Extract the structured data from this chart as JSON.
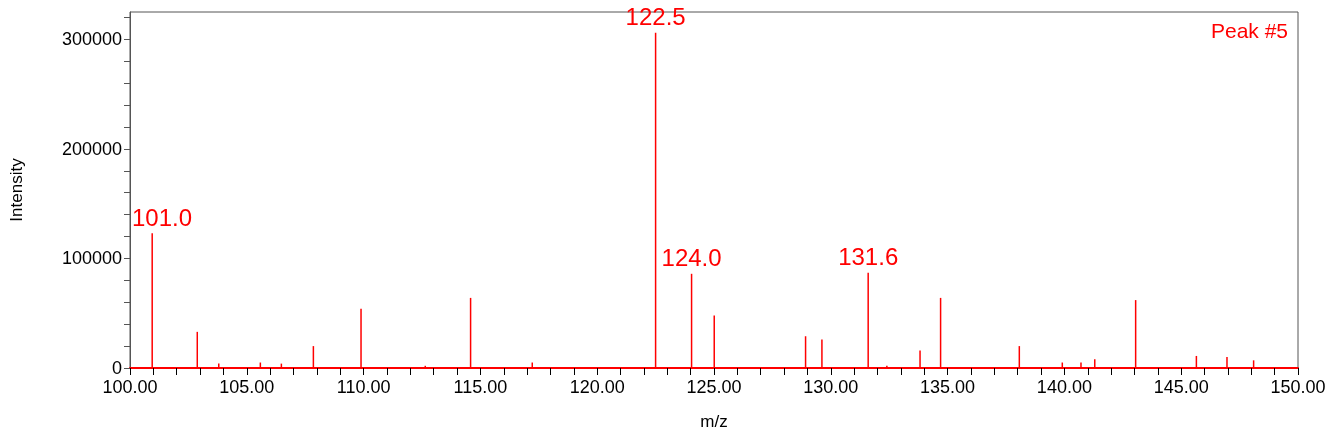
{
  "chart_data": {
    "type": "bar",
    "xlabel": "m/z",
    "ylabel": "Intensity",
    "x": [
      100.95,
      102.88,
      103.8,
      105.58,
      106.48,
      107.85,
      109.89,
      112.64,
      114.58,
      117.22,
      122.5,
      124.04,
      125.01,
      128.92,
      129.62,
      131.6,
      132.4,
      133.82,
      134.7,
      138.07,
      139.91,
      140.71,
      141.3,
      143.05,
      145.65,
      146.96,
      148.1
    ],
    "values": [
      123000,
      33000,
      4000,
      5000,
      4000,
      20000,
      54000,
      2000,
      64000,
      5000,
      306000,
      86000,
      48000,
      29000,
      26000,
      87000,
      2000,
      16000,
      64000,
      20000,
      5000,
      5000,
      8000,
      62000,
      11000,
      10000,
      7000
    ],
    "color": "#ff0000",
    "xlim": [
      100,
      150
    ],
    "xticks": [
      {
        "value": 100,
        "label": "100.00"
      },
      {
        "value": 101,
        "label": null
      },
      {
        "value": 102,
        "label": null
      },
      {
        "value": 103,
        "label": null
      },
      {
        "value": 104,
        "label": null
      },
      {
        "value": 105,
        "label": "105.00"
      },
      {
        "value": 106,
        "label": null
      },
      {
        "value": 107,
        "label": null
      },
      {
        "value": 108,
        "label": null
      },
      {
        "value": 109,
        "label": null
      },
      {
        "value": 110,
        "label": "110.00"
      },
      {
        "value": 111,
        "label": null
      },
      {
        "value": 112,
        "label": null
      },
      {
        "value": 113,
        "label": null
      },
      {
        "value": 114,
        "label": null
      },
      {
        "value": 115,
        "label": "115.00"
      },
      {
        "value": 116,
        "label": null
      },
      {
        "value": 117,
        "label": null
      },
      {
        "value": 118,
        "label": null
      },
      {
        "value": 119,
        "label": null
      },
      {
        "value": 120,
        "label": "120.00"
      },
      {
        "value": 121,
        "label": null
      },
      {
        "value": 122,
        "label": null
      },
      {
        "value": 123,
        "label": null
      },
      {
        "value": 124,
        "label": null
      },
      {
        "value": 125,
        "label": "125.00"
      },
      {
        "value": 126,
        "label": null
      },
      {
        "value": 127,
        "label": null
      },
      {
        "value": 128,
        "label": null
      },
      {
        "value": 129,
        "label": null
      },
      {
        "value": 130,
        "label": "130.00"
      },
      {
        "value": 131,
        "label": null
      },
      {
        "value": 132,
        "label": null
      },
      {
        "value": 133,
        "label": null
      },
      {
        "value": 134,
        "label": null
      },
      {
        "value": 135,
        "label": "135.00"
      },
      {
        "value": 136,
        "label": null
      },
      {
        "value": 137,
        "label": null
      },
      {
        "value": 138,
        "label": null
      },
      {
        "value": 139,
        "label": null
      },
      {
        "value": 140,
        "label": "140.00"
      },
      {
        "value": 141,
        "label": null
      },
      {
        "value": 142,
        "label": null
      },
      {
        "value": 143,
        "label": null
      },
      {
        "value": 144,
        "label": null
      },
      {
        "value": 145,
        "label": "145.00"
      },
      {
        "value": 146,
        "label": null
      },
      {
        "value": 147,
        "label": null
      },
      {
        "value": 148,
        "label": null
      },
      {
        "value": 149,
        "label": null
      },
      {
        "value": 150,
        "label": "150.00"
      }
    ],
    "ylim": [
      0,
      325000
    ],
    "yticks": [
      0,
      {
        "value": 20000,
        "label": null
      },
      {
        "value": 40000,
        "label": null
      },
      {
        "value": 60000,
        "label": null
      },
      {
        "value": 80000,
        "label": null
      },
      100000,
      {
        "value": 120000,
        "label": null
      },
      {
        "value": 140000,
        "label": null
      },
      {
        "value": 160000,
        "label": null
      },
      {
        "value": 180000,
        "label": null
      },
      200000,
      {
        "value": 220000,
        "label": null
      },
      {
        "value": 240000,
        "label": null
      },
      {
        "value": 260000,
        "label": null
      },
      {
        "value": 280000,
        "label": null
      },
      300000,
      {
        "value": 320000,
        "label": null
      }
    ],
    "grid": false,
    "annotations": [
      {
        "text": "101.0",
        "x": 100.95,
        "y": 123000
      },
      {
        "text": "122.5",
        "x": 122.5,
        "y": 306000
      },
      {
        "text": "124.0",
        "x": 124.04,
        "y": 86000
      },
      {
        "text": "131.6",
        "x": 131.6,
        "y": 87000
      },
      "Peak #5"
    ]
  }
}
